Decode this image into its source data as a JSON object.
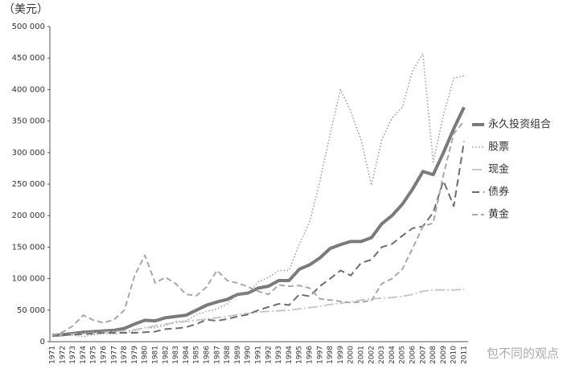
{
  "chart_data": {
    "type": "line",
    "title": "（美元）",
    "categories": [
      "1971",
      "1972",
      "1973",
      "1974",
      "1975",
      "1976",
      "1977",
      "1978",
      "1979",
      "1980",
      "1981",
      "1982",
      "1983",
      "1984",
      "1985",
      "1986",
      "1987",
      "1988",
      "1989",
      "1990",
      "1991",
      "1992",
      "1993",
      "1994",
      "1995",
      "1996",
      "1997",
      "1998",
      "1999",
      "2000",
      "2001",
      "2002",
      "2003",
      "2004",
      "2005",
      "2006",
      "2007",
      "2008",
      "2009",
      "2010",
      "2011"
    ],
    "series": [
      {
        "name": "永久投资组合",
        "color": "#7a7a7a",
        "width": 4,
        "dash": "none",
        "values": [
          10000,
          11000,
          13000,
          15000,
          16000,
          17000,
          18000,
          21000,
          28000,
          34000,
          33000,
          38000,
          40000,
          42000,
          50000,
          58000,
          63000,
          67000,
          75000,
          77000,
          85000,
          88000,
          97000,
          97000,
          115000,
          122000,
          133000,
          148000,
          154000,
          159000,
          159000,
          165000,
          187000,
          200000,
          218000,
          242000,
          270000,
          265000,
          300000,
          338000,
          372000
        ]
      },
      {
        "name": "股票",
        "color": "#9a9a9a",
        "width": 1.5,
        "dash": "1.5 2.5",
        "values": [
          10000,
          12000,
          10000,
          8000,
          11000,
          13000,
          12000,
          14000,
          17000,
          22000,
          22000,
          26000,
          32000,
          33000,
          43000,
          48000,
          52000,
          60000,
          77000,
          75000,
          95000,
          102000,
          113000,
          113000,
          155000,
          190000,
          255000,
          330000,
          400000,
          365000,
          320000,
          248000,
          320000,
          355000,
          372000,
          430000,
          457000,
          285000,
          360000,
          418000,
          422000
        ]
      },
      {
        "name": "现金",
        "color": "#c4c4c4",
        "width": 1.8,
        "dash": "12 3 2 3",
        "values": [
          10000,
          11000,
          12000,
          13000,
          14000,
          15000,
          16000,
          17000,
          19000,
          22000,
          25000,
          28000,
          30000,
          32000,
          34000,
          36000,
          38000,
          40000,
          43000,
          45000,
          47000,
          48000,
          49000,
          50000,
          52000,
          54000,
          56000,
          59000,
          61000,
          63000,
          66000,
          68000,
          69000,
          70000,
          72000,
          75000,
          80000,
          82000,
          82000,
          82000,
          83000
        ]
      },
      {
        "name": "债券",
        "color": "#6e6e6e",
        "width": 2,
        "dash": "9 5",
        "values": [
          10000,
          11000,
          11000,
          12000,
          13000,
          14000,
          14000,
          14000,
          14000,
          15000,
          16000,
          20000,
          21000,
          23000,
          28000,
          35000,
          33000,
          36000,
          40000,
          43000,
          50000,
          55000,
          60000,
          58000,
          75000,
          72000,
          88000,
          100000,
          113000,
          105000,
          125000,
          130000,
          150000,
          155000,
          168000,
          180000,
          183000,
          205000,
          255000,
          215000,
          318000
        ]
      },
      {
        "name": "黄金",
        "color": "#a8a8a8",
        "width": 2,
        "dash": "7 4",
        "values": [
          10000,
          15000,
          25000,
          42000,
          34000,
          30000,
          35000,
          50000,
          105000,
          137000,
          93000,
          102000,
          92000,
          75000,
          73000,
          87000,
          113000,
          97000,
          93000,
          87000,
          80000,
          75000,
          90000,
          88000,
          89000,
          85000,
          68000,
          66000,
          64000,
          62000,
          63000,
          65000,
          92000,
          100000,
          115000,
          148000,
          183000,
          188000,
          265000,
          330000,
          350000
        ]
      }
    ],
    "ylim": [
      0,
      500000
    ],
    "yticks": [
      0,
      {
        "value": 50000,
        "label": "50 000"
      },
      {
        "value": 100000,
        "label": "100 000"
      },
      {
        "value": 150000,
        "label": "150 000"
      },
      {
        "value": 200000,
        "label": "200 000"
      },
      {
        "value": 250000,
        "label": "250 000"
      },
      {
        "value": 300000,
        "label": "300 000"
      },
      {
        "value": 350000,
        "label": "350 000"
      },
      {
        "value": 400000,
        "label": "400 000"
      },
      {
        "value": 450000,
        "label": "450 000"
      },
      {
        "value": 500000,
        "label": "500 000"
      }
    ],
    "grid": false,
    "watermark": "包不同的观点"
  }
}
